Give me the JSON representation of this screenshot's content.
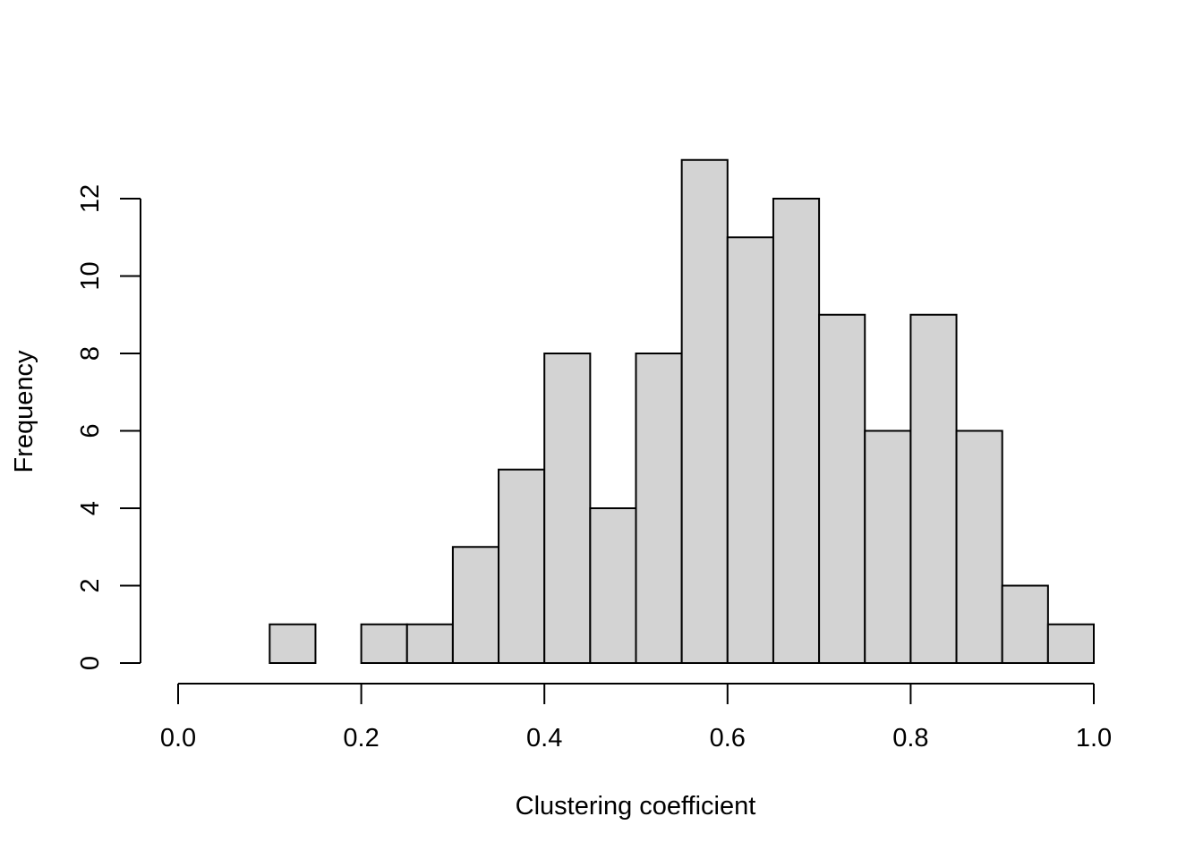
{
  "chart_data": {
    "type": "bar",
    "title": "",
    "xlabel": "Clustering coefficient",
    "ylabel": "Frequency",
    "bins": [
      {
        "from": 0.0,
        "to": 0.05,
        "count": 0
      },
      {
        "from": 0.05,
        "to": 0.1,
        "count": 0
      },
      {
        "from": 0.1,
        "to": 0.15,
        "count": 1
      },
      {
        "from": 0.15,
        "to": 0.2,
        "count": 0
      },
      {
        "from": 0.2,
        "to": 0.25,
        "count": 1
      },
      {
        "from": 0.25,
        "to": 0.3,
        "count": 1
      },
      {
        "from": 0.3,
        "to": 0.35,
        "count": 3
      },
      {
        "from": 0.35,
        "to": 0.4,
        "count": 5
      },
      {
        "from": 0.4,
        "to": 0.45,
        "count": 8
      },
      {
        "from": 0.45,
        "to": 0.5,
        "count": 4
      },
      {
        "from": 0.5,
        "to": 0.55,
        "count": 8
      },
      {
        "from": 0.55,
        "to": 0.6,
        "count": 13
      },
      {
        "from": 0.6,
        "to": 0.65,
        "count": 11
      },
      {
        "from": 0.65,
        "to": 0.7,
        "count": 12
      },
      {
        "from": 0.7,
        "to": 0.75,
        "count": 9
      },
      {
        "from": 0.75,
        "to": 0.8,
        "count": 6
      },
      {
        "from": 0.8,
        "to": 0.85,
        "count": 9
      },
      {
        "from": 0.85,
        "to": 0.9,
        "count": 6
      },
      {
        "from": 0.9,
        "to": 0.95,
        "count": 2
      },
      {
        "from": 0.95,
        "to": 1.0,
        "count": 1
      }
    ],
    "xlim": [
      0,
      1
    ],
    "ylim": [
      0,
      13
    ],
    "x_ticks": [
      {
        "value": 0.0,
        "label": "0.0"
      },
      {
        "value": 0.2,
        "label": "0.2"
      },
      {
        "value": 0.4,
        "label": "0.4"
      },
      {
        "value": 0.6,
        "label": "0.6"
      },
      {
        "value": 0.8,
        "label": "0.8"
      },
      {
        "value": 1.0,
        "label": "1.0"
      }
    ],
    "y_ticks": [
      {
        "value": 0,
        "label": "0"
      },
      {
        "value": 2,
        "label": "2"
      },
      {
        "value": 4,
        "label": "4"
      },
      {
        "value": 6,
        "label": "6"
      },
      {
        "value": 8,
        "label": "8"
      },
      {
        "value": 10,
        "label": "10"
      },
      {
        "value": 12,
        "label": "12"
      }
    ],
    "grid": false,
    "legend": "none",
    "colors": {
      "bar_fill": "#d3d3d3",
      "bar_stroke": "#000000",
      "axis": "#000000"
    }
  }
}
